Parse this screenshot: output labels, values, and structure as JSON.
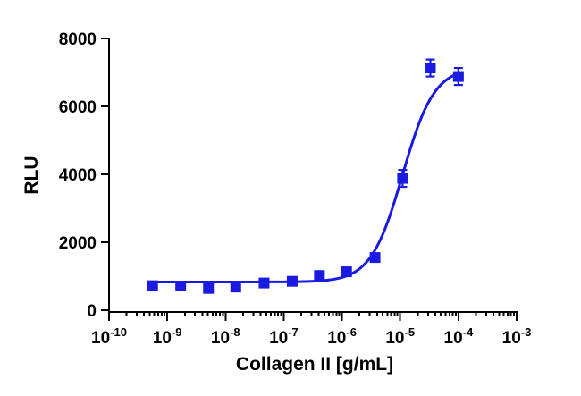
{
  "chart_data": {
    "type": "scatter",
    "title": "",
    "xlabel": "Collagen II [g/mL]",
    "ylabel": "RLU",
    "x_scale": "log",
    "xlim": [
      1e-10,
      0.001
    ],
    "ylim": [
      0,
      8000
    ],
    "x_tick_labels": [
      {
        "base": "10",
        "exp": "-10"
      },
      {
        "base": "10",
        "exp": "-9"
      },
      {
        "base": "10",
        "exp": "-8"
      },
      {
        "base": "10",
        "exp": "-7"
      },
      {
        "base": "10",
        "exp": "-6"
      },
      {
        "base": "10",
        "exp": "-5"
      },
      {
        "base": "10",
        "exp": "-4"
      },
      {
        "base": "10",
        "exp": "-3"
      }
    ],
    "x_tick_values": [
      1e-10,
      1e-09,
      1e-08,
      1e-07,
      1e-06,
      1e-05,
      0.0001,
      0.001
    ],
    "y_tick_labels": [
      "0",
      "2000",
      "4000",
      "6000",
      "8000"
    ],
    "y_tick_values": [
      0,
      2000,
      4000,
      6000,
      8000
    ],
    "grid": false,
    "color": "#1a1ae0",
    "series": [
      {
        "points": [
          {
            "x": 5.6e-10,
            "y": 720,
            "err": 60
          },
          {
            "x": 1.7e-09,
            "y": 710,
            "err": 50
          },
          {
            "x": 5.1e-09,
            "y": 640,
            "err": 60
          },
          {
            "x": 1.5e-08,
            "y": 680,
            "err": 50
          },
          {
            "x": 4.6e-08,
            "y": 800,
            "err": 50
          },
          {
            "x": 1.4e-07,
            "y": 850,
            "err": 50
          },
          {
            "x": 4.1e-07,
            "y": 1020,
            "err": 60
          },
          {
            "x": 1.2e-06,
            "y": 1130,
            "err": 60
          },
          {
            "x": 3.7e-06,
            "y": 1550,
            "err": 70
          },
          {
            "x": 1.1e-05,
            "y": 3880,
            "err": 250
          },
          {
            "x": 3.3e-05,
            "y": 7130,
            "err": 250
          },
          {
            "x": 0.0001,
            "y": 6880,
            "err": 250
          }
        ]
      }
    ],
    "fit": {
      "type": "4PL sigmoid",
      "bottom": 830,
      "top": 7150,
      "ec50": 1.1e-05,
      "hill": 1.6
    }
  }
}
